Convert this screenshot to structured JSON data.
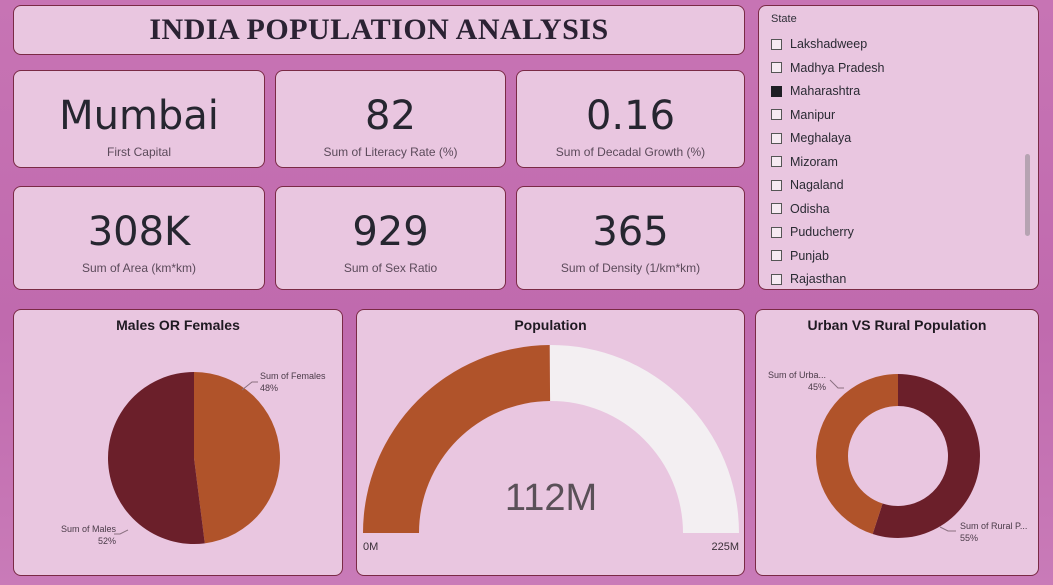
{
  "title": "INDIA POPULATION ANALYSIS",
  "cards": [
    {
      "value": "Mumbai",
      "label": "First Capital"
    },
    {
      "value": "82",
      "label": "Sum of Literacy Rate (%)"
    },
    {
      "value": "0.16",
      "label": "Sum of Decadal Growth (%)"
    },
    {
      "value": "308K",
      "label": "Sum of Area (km*km)"
    },
    {
      "value": "929",
      "label": "Sum of Sex Ratio"
    },
    {
      "value": "365",
      "label": "Sum of Density (1/km*km)"
    }
  ],
  "slicer": {
    "header": "State",
    "items": [
      {
        "label": "Lakshadweep",
        "checked": false
      },
      {
        "label": "Madhya Pradesh",
        "checked": false
      },
      {
        "label": "Maharashtra",
        "checked": true
      },
      {
        "label": "Manipur",
        "checked": false
      },
      {
        "label": "Meghalaya",
        "checked": false
      },
      {
        "label": "Mizoram",
        "checked": false
      },
      {
        "label": "Nagaland",
        "checked": false
      },
      {
        "label": "Odisha",
        "checked": false
      },
      {
        "label": "Puducherry",
        "checked": false
      },
      {
        "label": "Punjab",
        "checked": false
      },
      {
        "label": "Rajasthan",
        "checked": false
      }
    ]
  },
  "colors": {
    "dark": "#6b1f2a",
    "orange": "#b0532a",
    "track": "#f3eff2"
  },
  "chart_data": [
    {
      "type": "pie",
      "title": "Males OR Females",
      "slices": [
        {
          "name": "Sum of Females",
          "value": 48,
          "label": "Sum of Females",
          "pct": "48%"
        },
        {
          "name": "Sum of Males",
          "value": 52,
          "label": "Sum of Males",
          "pct": "52%"
        }
      ]
    },
    {
      "type": "gauge",
      "title": "Population",
      "value": 112,
      "min": 0,
      "max": 225,
      "value_label": "112M",
      "min_label": "0M",
      "max_label": "225M"
    },
    {
      "type": "donut",
      "title": "Urban VS Rural Population",
      "slices": [
        {
          "name": "Sum of Rural Population",
          "value": 55,
          "label": "Sum of Rural P...",
          "pct": "55%"
        },
        {
          "name": "Sum of Urban Population",
          "value": 45,
          "label": "Sum of Urba...",
          "pct": "45%"
        }
      ]
    }
  ]
}
